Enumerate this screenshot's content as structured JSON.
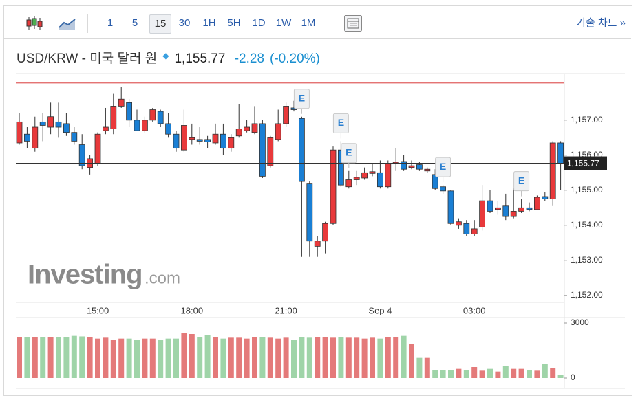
{
  "toolbar": {
    "intervals": [
      "1",
      "5",
      "15",
      "30",
      "1H",
      "5H",
      "1D",
      "1W",
      "1M"
    ],
    "selected": 2,
    "link": "기술 차트 »"
  },
  "header": {
    "title": "USD/KRW - 미국 달러 원",
    "price": "1,155.77",
    "change": "-2.28",
    "change_pct": "(-0.20%)"
  },
  "chart_data": {
    "type": "candlestick",
    "watermark": [
      "Investing",
      ".com"
    ],
    "categories": [
      null,
      null,
      null,
      null,
      null,
      null,
      null,
      null,
      null,
      null,
      "15:00",
      null,
      null,
      null,
      null,
      null,
      null,
      null,
      null,
      null,
      null,
      null,
      "18:00",
      null,
      null,
      null,
      null,
      null,
      null,
      null,
      null,
      null,
      null,
      null,
      "21:00",
      null,
      null,
      null,
      null,
      null,
      null,
      null,
      null,
      null,
      null,
      null,
      "Sep 4",
      null,
      null,
      null,
      null,
      null,
      null,
      null,
      null,
      null,
      null,
      null,
      "03:00",
      null,
      null,
      null,
      null,
      null,
      null,
      null,
      null,
      null,
      null,
      null
    ],
    "open": [
      1156.35,
      1156.6,
      1156.2,
      1156.95,
      1156.8,
      1156.95,
      1156.9,
      1156.65,
      1156.3,
      1155.65,
      1155.75,
      1156.7,
      1156.75,
      1157.4,
      1157.5,
      1157.0,
      1156.7,
      1157.0,
      1157.25,
      1156.9,
      1156.6,
      1156.15,
      1156.45,
      1156.45,
      1156.45,
      1156.35,
      1156.6,
      1156.2,
      1156.55,
      1156.7,
      1156.65,
      1156.9,
      1155.7,
      1156.45,
      1156.9,
      1157.35,
      1157.05,
      1155.2,
      1153.4,
      1153.55,
      1154.05,
      1156.15,
      1155.1,
      1155.3,
      1155.35,
      1155.48,
      1155.5,
      1155.1,
      1155.75,
      1155.82,
      1155.65,
      1155.73,
      1155.55,
      1155.45,
      1155.1,
      1154.98,
      1154.0,
      1154.05,
      1153.75,
      1153.95,
      1154.7,
      1154.45,
      1154.55,
      1154.25,
      1154.4,
      1154.5,
      1154.45,
      1154.82,
      1154.75,
      1156.35
    ],
    "high": [
      1157.2,
      1156.8,
      1157.1,
      1157.2,
      1157.5,
      1157.5,
      1157.2,
      1156.8,
      1156.6,
      1156.0,
      1156.65,
      1157.35,
      1157.75,
      1157.95,
      1157.6,
      1157.3,
      1157.1,
      1157.35,
      1157.3,
      1157.2,
      1156.7,
      1157.3,
      1156.9,
      1156.8,
      1156.55,
      1156.9,
      1156.9,
      1156.6,
      1157.45,
      1157.0,
      1157.4,
      1157.0,
      1156.55,
      1157.3,
      1157.5,
      1157.55,
      1157.1,
      1155.25,
      1153.7,
      1154.1,
      1156.25,
      1156.4,
      1155.55,
      1155.55,
      1155.65,
      1155.75,
      1155.85,
      1155.85,
      1156.2,
      1156.0,
      1155.85,
      1155.8,
      1155.65,
      1155.6,
      1155.15,
      1155.0,
      1154.2,
      1154.15,
      1154.15,
      1155.15,
      1155.0,
      1154.7,
      1154.9,
      1155.05,
      1154.75,
      1154.65,
      1154.85,
      1154.95,
      1156.4,
      1156.4
    ],
    "low": [
      1156.3,
      1156.2,
      1156.1,
      1156.4,
      1156.6,
      1156.5,
      1156.55,
      1156.3,
      1155.6,
      1155.45,
      1155.7,
      1156.6,
      1156.6,
      1157.35,
      1156.8,
      1156.7,
      1156.65,
      1156.95,
      1156.8,
      1156.5,
      1156.1,
      1156.1,
      1156.3,
      1156.3,
      1156.2,
      1156.3,
      1156.0,
      1156.1,
      1156.5,
      1156.65,
      1156.6,
      1155.35,
      1155.65,
      1156.4,
      1156.8,
      1157.25,
      1153.1,
      1153.1,
      1153.1,
      1153.2,
      1154.0,
      1155.1,
      1155.05,
      1155.15,
      1155.3,
      1155.4,
      1155.05,
      1155.05,
      1155.55,
      1155.55,
      1155.6,
      1155.55,
      1155.5,
      1155.0,
      1154.9,
      1154.0,
      1153.9,
      1153.7,
      1153.7,
      1153.85,
      1154.35,
      1154.3,
      1154.15,
      1154.2,
      1154.35,
      1154.4,
      1154.45,
      1154.7,
      1154.55,
      1155.0
    ],
    "close": [
      1156.95,
      1156.4,
      1156.8,
      1156.85,
      1157.1,
      1156.8,
      1156.65,
      1156.4,
      1155.7,
      1155.9,
      1156.6,
      1156.8,
      1157.4,
      1157.6,
      1157.0,
      1156.7,
      1157.0,
      1157.3,
      1156.9,
      1156.6,
      1156.2,
      1156.85,
      1156.5,
      1156.4,
      1156.38,
      1156.6,
      1156.2,
      1156.5,
      1156.75,
      1156.8,
      1156.9,
      1155.4,
      1156.5,
      1156.9,
      1157.4,
      1157.3,
      1155.25,
      1153.55,
      1153.55,
      1154.05,
      1156.15,
      1155.15,
      1155.3,
      1155.37,
      1155.5,
      1155.53,
      1155.1,
      1155.75,
      1155.8,
      1155.6,
      1155.7,
      1155.6,
      1155.6,
      1155.05,
      1154.98,
      1154.05,
      1154.1,
      1153.75,
      1153.9,
      1154.7,
      1154.4,
      1154.5,
      1154.25,
      1154.4,
      1154.5,
      1154.45,
      1154.8,
      1154.75,
      1156.35,
      1155.77
    ],
    "up_color": "#e8393b",
    "down_color": "#1a7fd4",
    "ylim": [
      1151.8,
      1158.33
    ],
    "yticks": [
      {
        "value": 1152,
        "label": "1,152.00"
      },
      {
        "value": 1153,
        "label": "1,153.00"
      },
      {
        "value": 1154,
        "label": "1,154.00"
      },
      {
        "value": 1155,
        "label": "1,155.00"
      },
      {
        "value": 1156,
        "label": "1,156.00"
      },
      {
        "value": 1157,
        "label": "1,157.00"
      }
    ],
    "last_price": {
      "value": 1155.77,
      "label": "1,155.77"
    },
    "reference_line": {
      "value": 1158.06,
      "color": "#e06060"
    },
    "events": {
      "label": "E",
      "candles": [
        36,
        41,
        42,
        54,
        64
      ]
    },
    "volume": {
      "values": [
        2250,
        2250,
        2250,
        2250,
        2250,
        2250,
        2250,
        2300,
        2270,
        2250,
        2150,
        2200,
        2100,
        2150,
        2150,
        2100,
        2150,
        2150,
        2100,
        2150,
        2150,
        2450,
        2400,
        2250,
        2350,
        2250,
        2150,
        2200,
        2200,
        2150,
        2250,
        2250,
        2200,
        2150,
        2200,
        2100,
        2250,
        2200,
        2250,
        2250,
        2200,
        2250,
        2200,
        2200,
        2150,
        2200,
        2150,
        2250,
        2250,
        2300,
        1850,
        1100,
        1100,
        450,
        450,
        450,
        500,
        450,
        600,
        400,
        500,
        350,
        650,
        500,
        500,
        450,
        400,
        750,
        550,
        150
      ],
      "up_color": "#e47a7a",
      "down_color": "#9fd4a8",
      "ylim": [
        0,
        3300
      ],
      "yticks": [
        0,
        3000
      ]
    }
  }
}
